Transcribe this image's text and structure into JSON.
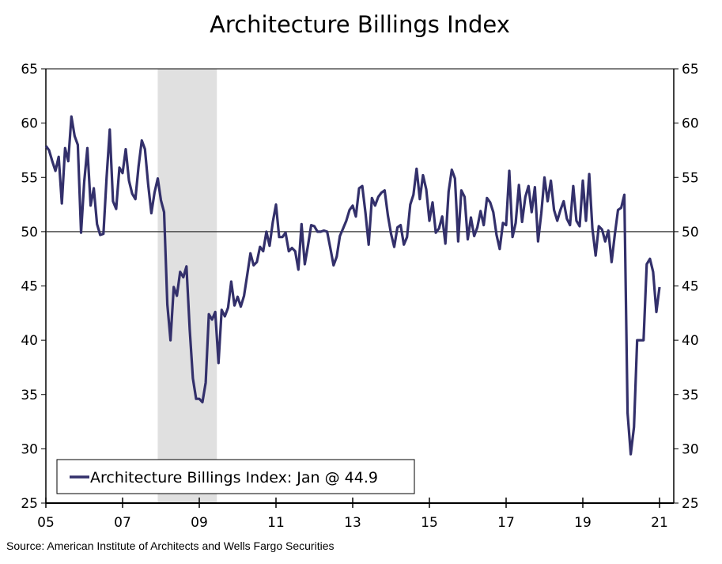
{
  "chart_data": {
    "type": "line",
    "title": "Architecture Billings Index",
    "source": "Source: American Institute of Architects and Wells Fargo Securities",
    "x_start": "2005-01",
    "frequency": "monthly",
    "xlim": [
      "2005-01",
      "2021-05"
    ],
    "ylim": [
      25,
      65
    ],
    "y_ticks": [
      25,
      30,
      35,
      40,
      45,
      50,
      55,
      60,
      65
    ],
    "y_ticks_right": true,
    "x_ticks": [
      {
        "year": 2005,
        "label": "05"
      },
      {
        "year": 2007,
        "label": "07"
      },
      {
        "year": 2009,
        "label": "09"
      },
      {
        "year": 2011,
        "label": "11"
      },
      {
        "year": 2013,
        "label": "13"
      },
      {
        "year": 2015,
        "label": "15"
      },
      {
        "year": 2017,
        "label": "17"
      },
      {
        "year": 2019,
        "label": "19"
      },
      {
        "year": 2021,
        "label": "21"
      }
    ],
    "reference_line": 50,
    "recession_shading": {
      "start": "2007-12",
      "end": "2009-06",
      "color": "#e0e0e0"
    },
    "grid": false,
    "legend_placement": "bottom-left",
    "series": [
      {
        "name": "Architecture Billings Index: Jan @ 44.9",
        "color": "#33306b",
        "values": [
          57.9,
          57.5,
          56.5,
          55.6,
          56.9,
          52.6,
          57.7,
          56.5,
          60.6,
          58.8,
          58.0,
          49.9,
          54.6,
          57.7,
          52.4,
          54.0,
          50.7,
          49.7,
          49.8,
          55.0,
          59.4,
          52.8,
          52.1,
          55.9,
          55.4,
          57.6,
          54.7,
          53.5,
          53.0,
          56.0,
          58.4,
          57.6,
          54.4,
          51.7,
          53.6,
          54.9,
          52.9,
          51.8,
          43.3,
          40.0,
          44.9,
          44.1,
          46.3,
          45.8,
          46.8,
          41.0,
          36.5,
          34.6,
          34.6,
          34.3,
          36.1,
          42.4,
          41.9,
          42.6,
          37.9,
          42.8,
          42.2,
          43.0,
          45.4,
          43.2,
          44.0,
          43.1,
          44.1,
          46.0,
          48.0,
          46.9,
          47.2,
          48.6,
          48.2,
          50.0,
          48.7,
          50.9,
          52.5,
          49.5,
          49.5,
          49.9,
          48.2,
          48.5,
          48.2,
          46.5,
          50.7,
          47.0,
          48.7,
          50.6,
          50.5,
          50.0,
          50.0,
          50.1,
          50.0,
          48.5,
          46.9,
          47.7,
          49.6,
          50.3,
          51.0,
          52.0,
          52.4,
          51.4,
          54.0,
          54.2,
          51.7,
          48.8,
          53.1,
          52.4,
          53.2,
          53.6,
          53.8,
          51.5,
          49.8,
          48.6,
          50.4,
          50.6,
          48.8,
          49.5,
          52.5,
          53.4,
          55.8,
          53.0,
          55.2,
          53.9,
          51.0,
          52.7,
          49.9,
          50.3,
          51.4,
          48.9,
          53.7,
          55.7,
          54.9,
          49.1,
          53.8,
          53.2,
          49.3,
          51.3,
          49.6,
          50.4,
          51.9,
          50.6,
          53.1,
          52.7,
          51.8,
          49.7,
          48.4,
          50.8,
          50.6,
          55.6,
          49.5,
          50.8,
          54.3,
          50.9,
          53.2,
          54.2,
          51.8,
          54.1,
          49.1,
          51.7,
          55.0,
          52.8,
          54.7,
          52.0,
          51.0,
          52.0,
          52.8,
          51.2,
          50.6,
          54.2,
          51.0,
          50.5,
          54.7,
          51.0,
          55.3,
          50.3,
          47.8,
          50.5,
          50.2,
          49.1,
          50.1,
          47.2,
          49.7,
          52.0,
          52.2,
          53.4,
          33.3,
          29.5,
          32.0,
          40.0,
          40.0,
          40.0,
          47.0,
          47.5,
          46.3,
          42.6,
          44.9
        ]
      }
    ]
  }
}
